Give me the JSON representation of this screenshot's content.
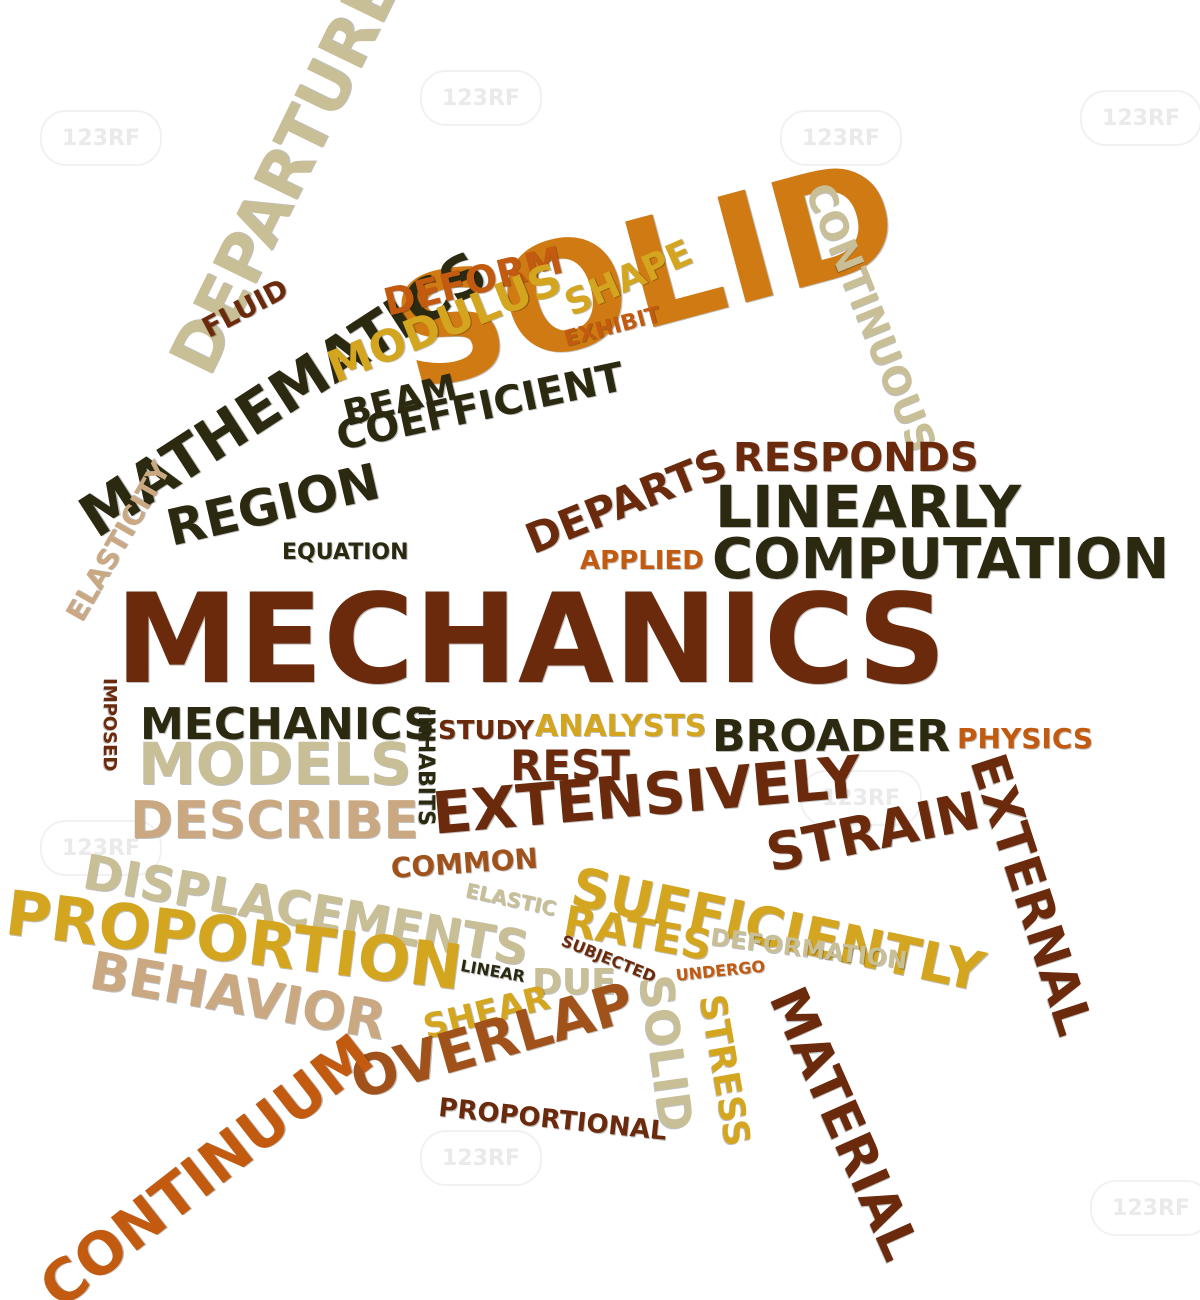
{
  "watermark": "123RF",
  "palette": {
    "dark_brown": "#6b2a0c",
    "black_olive": "#2b2a10",
    "orange": "#cf7a12",
    "burnt_orange": "#c25a10",
    "gold": "#d4a51e",
    "khaki": "#c8bf96",
    "tan": "#c9a882",
    "rust": "#a0521a"
  },
  "words": [
    {
      "text": "MECHANICS"
    },
    {
      "text": "SOLID"
    },
    {
      "text": "DEPARTURE"
    },
    {
      "text": "MATHEMATICS"
    },
    {
      "text": "FLUID"
    },
    {
      "text": "DEFORM"
    },
    {
      "text": "MODULUS"
    },
    {
      "text": "SHAPE"
    },
    {
      "text": "EXHIBIT"
    },
    {
      "text": "BEAM"
    },
    {
      "text": "COEFFICIENT"
    },
    {
      "text": "CONTINUOUS"
    },
    {
      "text": "ELASTICITY"
    },
    {
      "text": "REGION"
    },
    {
      "text": "EQUATION"
    },
    {
      "text": "DEPARTS"
    },
    {
      "text": "RESPONDS"
    },
    {
      "text": "LINEARLY"
    },
    {
      "text": "APPLIED"
    },
    {
      "text": "COMPUTATION"
    },
    {
      "text": "IMPOSED"
    },
    {
      "text": "MECHANICS"
    },
    {
      "text": "MODELS"
    },
    {
      "text": "INHABITS"
    },
    {
      "text": "STUDY"
    },
    {
      "text": "ANALYSTS"
    },
    {
      "text": "BROADER"
    },
    {
      "text": "PHYSICS"
    },
    {
      "text": "REST"
    },
    {
      "text": "DESCRIBE"
    },
    {
      "text": "EXTENSIVELY"
    },
    {
      "text": "EXTERNAL"
    },
    {
      "text": "STRAIN"
    },
    {
      "text": "COMMON"
    },
    {
      "text": "SUFFICIENTLY"
    },
    {
      "text": "DISPLACEMENTS"
    },
    {
      "text": "ELASTIC"
    },
    {
      "text": "PROPORTION"
    },
    {
      "text": "RATES"
    },
    {
      "text": "DEFORMATION"
    },
    {
      "text": "SUBJECTED"
    },
    {
      "text": "BEHAVIOR"
    },
    {
      "text": "LINEAR"
    },
    {
      "text": "DUE"
    },
    {
      "text": "UNDERGO"
    },
    {
      "text": "SHEAR"
    },
    {
      "text": "SOLID"
    },
    {
      "text": "STRESS"
    },
    {
      "text": "OVERLAP"
    },
    {
      "text": "MATERIAL"
    },
    {
      "text": "CONTINUUM"
    },
    {
      "text": "PROPORTIONAL"
    }
  ]
}
